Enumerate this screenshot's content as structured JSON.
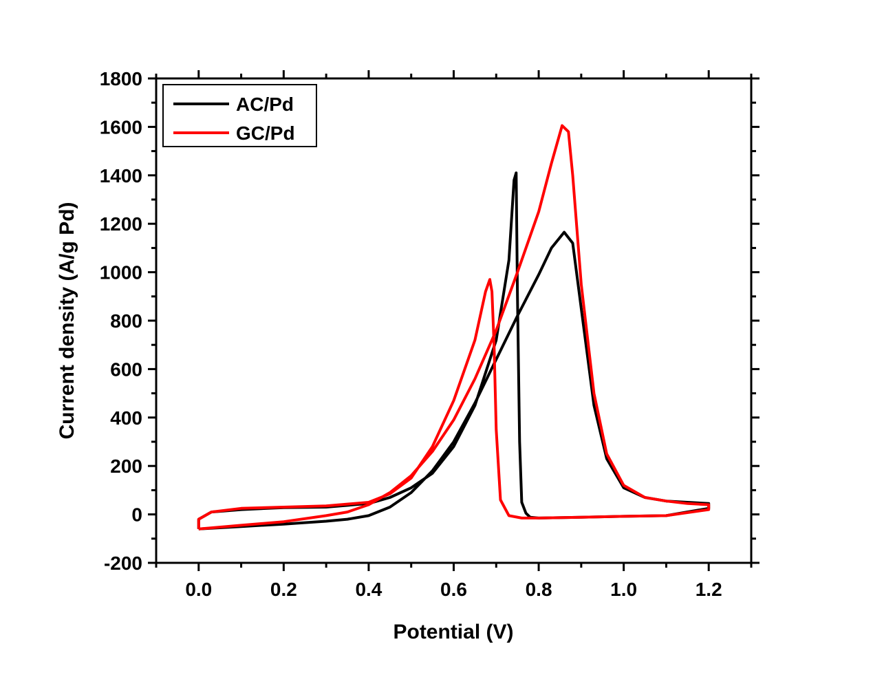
{
  "chart_data": {
    "type": "line",
    "xlabel": "Potential (V)",
    "ylabel": "Current density (A/g Pd)",
    "xlim": [
      -0.1,
      1.3
    ],
    "ylim": [
      -200,
      1800
    ],
    "x_ticks": [
      "0.0",
      "0.2",
      "0.4",
      "0.6",
      "0.8",
      "1.0",
      "1.2"
    ],
    "y_ticks": [
      "-200",
      "0",
      "200",
      "400",
      "600",
      "800",
      "1000",
      "1200",
      "1400",
      "1600",
      "1800"
    ],
    "grid": false,
    "legend_position": "top-left",
    "series": [
      {
        "name": "AC/Pd",
        "color": "#000000",
        "points": [
          [
            0.0,
            -60
          ],
          [
            0.1,
            -50
          ],
          [
            0.2,
            -40
          ],
          [
            0.3,
            -28
          ],
          [
            0.35,
            -20
          ],
          [
            0.4,
            -5
          ],
          [
            0.45,
            30
          ],
          [
            0.5,
            90
          ],
          [
            0.55,
            180
          ],
          [
            0.6,
            300
          ],
          [
            0.65,
            460
          ],
          [
            0.7,
            640
          ],
          [
            0.75,
            820
          ],
          [
            0.8,
            990
          ],
          [
            0.83,
            1100
          ],
          [
            0.86,
            1165
          ],
          [
            0.88,
            1120
          ],
          [
            0.9,
            850
          ],
          [
            0.93,
            450
          ],
          [
            0.96,
            230
          ],
          [
            1.0,
            110
          ],
          [
            1.05,
            70
          ],
          [
            1.1,
            55
          ],
          [
            1.15,
            50
          ],
          [
            1.2,
            45
          ],
          [
            1.2,
            25
          ],
          [
            1.1,
            -5
          ],
          [
            1.0,
            -8
          ],
          [
            0.9,
            -12
          ],
          [
            0.8,
            -15
          ],
          [
            0.78,
            -12
          ],
          [
            0.77,
            5
          ],
          [
            0.76,
            50
          ],
          [
            0.755,
            300
          ],
          [
            0.75,
            900
          ],
          [
            0.747,
            1410
          ],
          [
            0.742,
            1380
          ],
          [
            0.73,
            1050
          ],
          [
            0.7,
            720
          ],
          [
            0.65,
            450
          ],
          [
            0.6,
            280
          ],
          [
            0.55,
            170
          ],
          [
            0.5,
            110
          ],
          [
            0.45,
            70
          ],
          [
            0.4,
            45
          ],
          [
            0.3,
            30
          ],
          [
            0.2,
            28
          ],
          [
            0.1,
            20
          ],
          [
            0.03,
            10
          ],
          [
            0.0,
            -20
          ],
          [
            0.0,
            -60
          ]
        ]
      },
      {
        "name": "GC/Pd",
        "color": "#ff0000",
        "points": [
          [
            0.0,
            -60
          ],
          [
            0.1,
            -45
          ],
          [
            0.2,
            -30
          ],
          [
            0.3,
            -5
          ],
          [
            0.35,
            10
          ],
          [
            0.4,
            40
          ],
          [
            0.45,
            90
          ],
          [
            0.5,
            160
          ],
          [
            0.55,
            260
          ],
          [
            0.6,
            390
          ],
          [
            0.65,
            560
          ],
          [
            0.7,
            760
          ],
          [
            0.75,
            1000
          ],
          [
            0.8,
            1250
          ],
          [
            0.83,
            1450
          ],
          [
            0.855,
            1605
          ],
          [
            0.87,
            1580
          ],
          [
            0.88,
            1400
          ],
          [
            0.9,
            950
          ],
          [
            0.93,
            500
          ],
          [
            0.96,
            250
          ],
          [
            1.0,
            120
          ],
          [
            1.05,
            70
          ],
          [
            1.1,
            55
          ],
          [
            1.15,
            45
          ],
          [
            1.2,
            40
          ],
          [
            1.2,
            20
          ],
          [
            1.1,
            -5
          ],
          [
            1.0,
            -8
          ],
          [
            0.9,
            -12
          ],
          [
            0.8,
            -15
          ],
          [
            0.76,
            -15
          ],
          [
            0.73,
            -5
          ],
          [
            0.71,
            60
          ],
          [
            0.7,
            350
          ],
          [
            0.695,
            700
          ],
          [
            0.69,
            920
          ],
          [
            0.685,
            970
          ],
          [
            0.675,
            920
          ],
          [
            0.65,
            720
          ],
          [
            0.6,
            470
          ],
          [
            0.55,
            280
          ],
          [
            0.5,
            150
          ],
          [
            0.45,
            85
          ],
          [
            0.4,
            50
          ],
          [
            0.3,
            35
          ],
          [
            0.2,
            30
          ],
          [
            0.1,
            25
          ],
          [
            0.03,
            10
          ],
          [
            0.0,
            -20
          ],
          [
            0.0,
            -60
          ]
        ]
      }
    ]
  }
}
